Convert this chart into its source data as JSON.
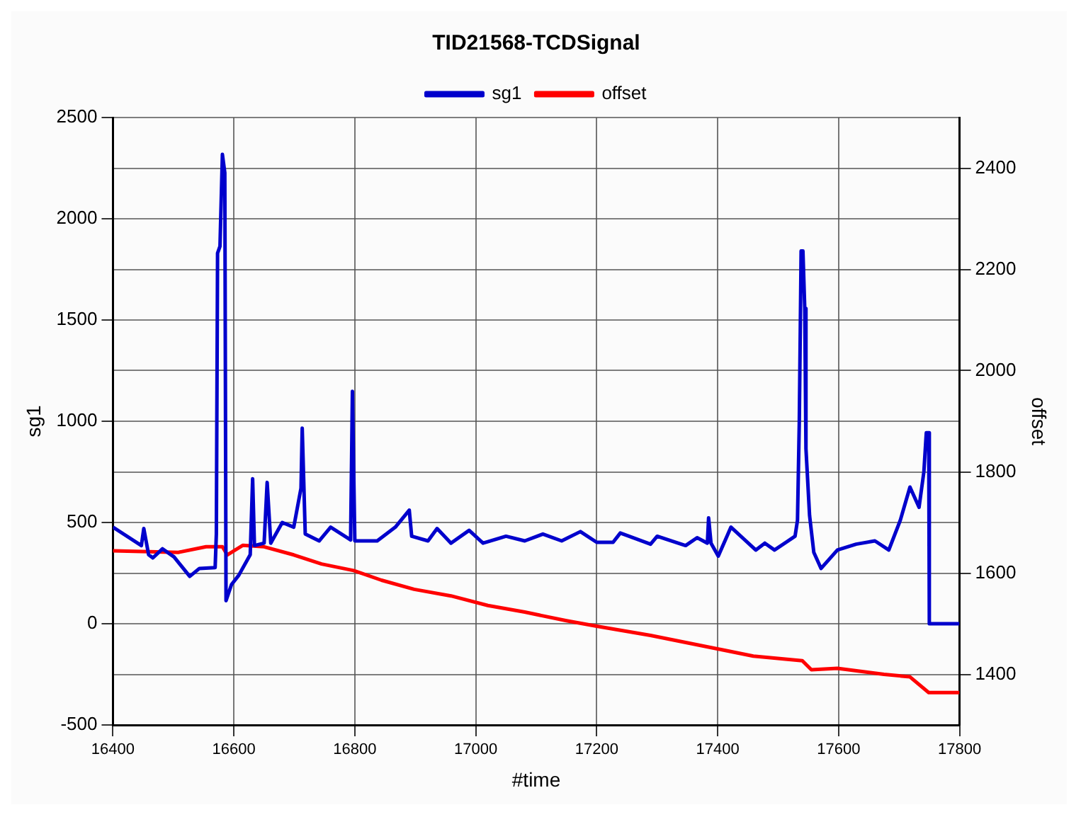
{
  "chart_data": {
    "type": "line",
    "title": "TID21568-TCDSignal",
    "xlabel": "#time",
    "ylabel": "sg1",
    "y2label": "offset",
    "xlim": [
      16400,
      17800
    ],
    "xticks": [
      16400,
      16600,
      16800,
      17000,
      17200,
      17400,
      17600,
      17800
    ],
    "ylim": [
      -500,
      2500
    ],
    "yticks": [
      -500,
      0,
      500,
      1000,
      1500,
      2000,
      2500
    ],
    "y2lim": [
      1300,
      2500
    ],
    "y2ticks": [
      1400,
      1600,
      1800,
      2000,
      2200,
      2400
    ],
    "grid": true,
    "legend": "top",
    "marker": "none",
    "line_style": "solid",
    "series": [
      {
        "name": "sg1",
        "color": "#0000cc",
        "x": [
          16400,
          16447,
          16451,
          16459,
          16466,
          16482,
          16501,
          16527,
          16543,
          16569,
          16571,
          16573,
          16577,
          16581,
          16585,
          16587,
          16596,
          16608,
          16627,
          16631,
          16634,
          16650,
          16655,
          16661,
          16680,
          16699,
          16711,
          16713,
          16718,
          16741,
          16760,
          16793,
          16796,
          16800,
          16837,
          16867,
          16890,
          16894,
          16921,
          16936,
          16959,
          16989,
          17012,
          17050,
          17081,
          17111,
          17142,
          17173,
          17200,
          17227,
          17239,
          17289,
          17300,
          17347,
          17366,
          17383,
          17385,
          17389,
          17401,
          17422,
          17463,
          17478,
          17494,
          17528,
          17532,
          17535,
          17538,
          17541,
          17544,
          17546,
          17552,
          17559,
          17571,
          17598,
          17629,
          17660,
          17683,
          17702,
          17718,
          17733,
          17741,
          17745,
          17749,
          17750,
          17800
        ],
        "values": [
          477,
          386,
          470,
          341,
          325,
          370,
          330,
          234,
          273,
          277,
          443,
          1830,
          1864,
          2318,
          2227,
          114,
          193,
          239,
          341,
          716,
          386,
          398,
          698,
          398,
          500,
          477,
          670,
          966,
          443,
          409,
          477,
          414,
          1148,
          409,
          409,
          477,
          561,
          432,
          409,
          470,
          398,
          461,
          398,
          432,
          409,
          443,
          409,
          455,
          402,
          402,
          448,
          393,
          432,
          386,
          425,
          398,
          523,
          398,
          334,
          477,
          364,
          398,
          364,
          432,
          511,
          1000,
          1841,
          1841,
          1557,
          864,
          534,
          352,
          273,
          364,
          393,
          409,
          364,
          511,
          675,
          575,
          750,
          943,
          943,
          0,
          0
        ]
      },
      {
        "name": "offset",
        "color": "#ff0000",
        "axis": "y2",
        "x": [
          16400,
          16508,
          16554,
          16581,
          16589,
          16615,
          16650,
          16699,
          16745,
          16798,
          16844,
          16898,
          16959,
          17020,
          17081,
          17150,
          17200,
          17289,
          17401,
          17459,
          17540,
          17555,
          17598,
          17675,
          17718,
          17749,
          17800
        ],
        "values": [
          1644,
          1641,
          1652,
          1652,
          1636,
          1655,
          1652,
          1636,
          1618,
          1605,
          1586,
          1568,
          1555,
          1536,
          1523,
          1506,
          1495,
          1477,
          1450,
          1436,
          1427,
          1409,
          1412,
          1400,
          1395,
          1364,
          1364
        ]
      }
    ]
  }
}
